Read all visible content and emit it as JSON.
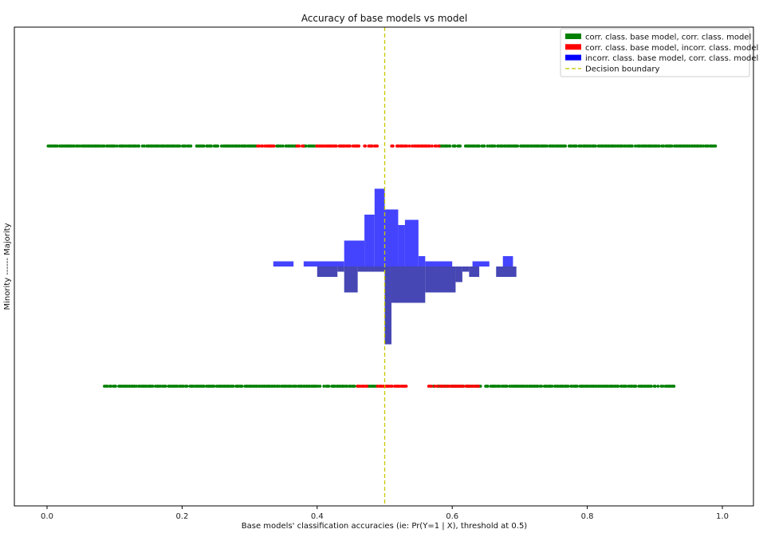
{
  "chart_data": {
    "type": "scatter",
    "title": "Accuracy of base models vs model",
    "xlabel": "Base models' classification accuracies (ie: Pr(Y=1 | X), threshold at 0.5)",
    "ylabel": "Minority ------ Majority",
    "xlim": [
      -0.05,
      1.045
    ],
    "xticks": [
      "0.0",
      "0.2",
      "0.4",
      "0.6",
      "0.8",
      "1.0"
    ],
    "xtick_values": [
      0.0,
      0.2,
      0.4,
      0.6,
      0.8,
      1.0
    ],
    "grid": false,
    "legend": {
      "placement": "top-right",
      "entries": [
        {
          "label": "corr. class. base model, corr. class. model",
          "color": "#008000",
          "kind": "patch"
        },
        {
          "label": "corr. class. base model, incorr. class. model",
          "color": "#ff0000",
          "kind": "patch"
        },
        {
          "label": "incorr. class. base model, corr. class. model",
          "color": "#0000ff",
          "kind": "patch"
        },
        {
          "label": "Decision boundary",
          "color": "#c8c800",
          "kind": "dashed-line"
        }
      ]
    },
    "decision_boundary": 0.5,
    "strips": [
      {
        "name": "Majority",
        "green_ranges": [
          [
            0.0,
            0.31
          ],
          [
            0.34,
            0.37
          ],
          [
            0.38,
            0.4
          ],
          [
            0.58,
            0.99
          ]
        ],
        "red_ranges": [
          [
            0.31,
            0.34
          ],
          [
            0.37,
            0.38
          ],
          [
            0.4,
            0.49
          ],
          [
            0.51,
            0.58
          ]
        ]
      },
      {
        "name": "Minority",
        "green_ranges": [
          [
            0.085,
            0.46
          ],
          [
            0.475,
            0.49
          ],
          [
            0.57,
            0.93
          ]
        ],
        "red_ranges": [
          [
            0.46,
            0.475
          ],
          [
            0.49,
            0.535
          ],
          [
            0.565,
            0.64
          ]
        ]
      }
    ],
    "histograms": [
      {
        "name": "Majority",
        "color": "#4444ff",
        "direction": "up",
        "bins": [
          {
            "x0": 0.335,
            "x1": 0.365,
            "h": 1
          },
          {
            "x0": 0.38,
            "x1": 0.44,
            "h": 1
          },
          {
            "x0": 0.44,
            "x1": 0.47,
            "h": 5
          },
          {
            "x0": 0.47,
            "x1": 0.485,
            "h": 10
          },
          {
            "x0": 0.485,
            "x1": 0.5,
            "h": 15
          },
          {
            "x0": 0.5,
            "x1": 0.52,
            "h": 11
          },
          {
            "x0": 0.52,
            "x1": 0.53,
            "h": 8
          },
          {
            "x0": 0.53,
            "x1": 0.55,
            "h": 9
          },
          {
            "x0": 0.55,
            "x1": 0.56,
            "h": 2
          },
          {
            "x0": 0.56,
            "x1": 0.575,
            "h": 1
          },
          {
            "x0": 0.575,
            "x1": 0.6,
            "h": 1
          },
          {
            "x0": 0.63,
            "x1": 0.655,
            "h": 1
          },
          {
            "x0": 0.675,
            "x1": 0.69,
            "h": 2
          }
        ]
      },
      {
        "name": "Minority",
        "color": "#4646b4",
        "direction": "down",
        "bins": [
          {
            "x0": 0.4,
            "x1": 0.43,
            "h": 2
          },
          {
            "x0": 0.43,
            "x1": 0.44,
            "h": 1
          },
          {
            "x0": 0.44,
            "x1": 0.46,
            "h": 5
          },
          {
            "x0": 0.46,
            "x1": 0.5,
            "h": 1
          },
          {
            "x0": 0.5,
            "x1": 0.51,
            "h": 15
          },
          {
            "x0": 0.51,
            "x1": 0.56,
            "h": 7
          },
          {
            "x0": 0.56,
            "x1": 0.575,
            "h": 5
          },
          {
            "x0": 0.575,
            "x1": 0.605,
            "h": 5
          },
          {
            "x0": 0.605,
            "x1": 0.615,
            "h": 3
          },
          {
            "x0": 0.615,
            "x1": 0.625,
            "h": 1
          },
          {
            "x0": 0.625,
            "x1": 0.64,
            "h": 2
          },
          {
            "x0": 0.665,
            "x1": 0.695,
            "h": 2
          }
        ]
      }
    ]
  }
}
